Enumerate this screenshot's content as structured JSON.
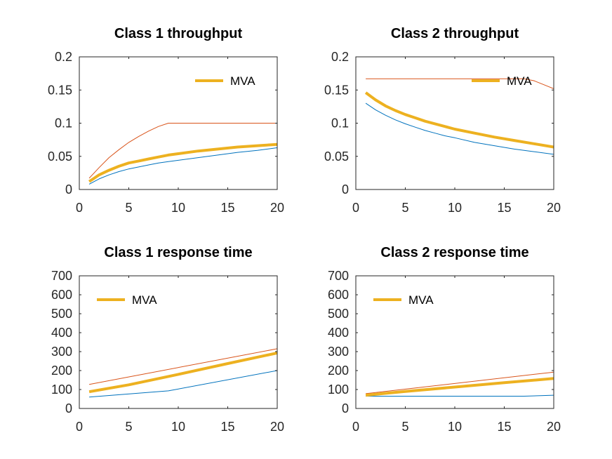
{
  "figure": {
    "background": "#ffffff"
  },
  "colors": {
    "lower_bound": "#0072bd",
    "upper_bound": "#d95319",
    "mva": "#edb120",
    "axis": "#262626"
  },
  "chart_data": [
    {
      "type": "line",
      "title": "Class 1 throughput",
      "xlabel": "",
      "ylabel": "",
      "xlim": [
        0,
        20
      ],
      "ylim": [
        0,
        0.2
      ],
      "xticks": [
        0,
        5,
        10,
        15,
        20
      ],
      "xtick_labels": [
        "0",
        "5",
        "10",
        "15",
        "20"
      ],
      "yticks": [
        0,
        0.05,
        0.1,
        0.15,
        0.2
      ],
      "ytick_labels": [
        "0",
        "0.05",
        "0.1",
        "0.15",
        "0.2"
      ],
      "legend": {
        "entries": [
          "MVA"
        ],
        "position": "top-right"
      },
      "series": [
        {
          "name": "lower",
          "color_key": "lower_bound",
          "width": 1,
          "x": [
            1,
            2,
            3,
            4,
            5,
            6,
            7,
            8,
            9,
            10,
            12,
            14,
            16,
            18,
            20
          ],
          "y": [
            0.008,
            0.016,
            0.022,
            0.027,
            0.031,
            0.034,
            0.037,
            0.04,
            0.042,
            0.044,
            0.048,
            0.052,
            0.056,
            0.059,
            0.063
          ]
        },
        {
          "name": "upper",
          "color_key": "upper_bound",
          "width": 1,
          "x": [
            1,
            2,
            3,
            4,
            5,
            6,
            7,
            8,
            9,
            10,
            15,
            20
          ],
          "y": [
            0.017,
            0.033,
            0.048,
            0.06,
            0.071,
            0.08,
            0.088,
            0.095,
            0.1,
            0.1,
            0.1,
            0.1
          ]
        },
        {
          "name": "MVA",
          "color_key": "mva",
          "width": 4,
          "x": [
            1,
            2,
            3,
            4,
            5,
            6,
            7,
            8,
            9,
            10,
            12,
            14,
            16,
            18,
            20
          ],
          "y": [
            0.012,
            0.022,
            0.029,
            0.035,
            0.04,
            0.043,
            0.046,
            0.049,
            0.052,
            0.054,
            0.058,
            0.061,
            0.064,
            0.066,
            0.068
          ]
        }
      ]
    },
    {
      "type": "line",
      "title": "Class 2 throughput",
      "xlabel": "",
      "ylabel": "",
      "xlim": [
        0,
        20
      ],
      "ylim": [
        0,
        0.2
      ],
      "xticks": [
        0,
        5,
        10,
        15,
        20
      ],
      "xtick_labels": [
        "0",
        "5",
        "10",
        "15",
        "20"
      ],
      "yticks": [
        0,
        0.05,
        0.1,
        0.15,
        0.2
      ],
      "ytick_labels": [
        "0",
        "0.05",
        "0.1",
        "0.15",
        "0.2"
      ],
      "legend": {
        "entries": [
          "MVA"
        ],
        "position": "top-right"
      },
      "series": [
        {
          "name": "lower",
          "color_key": "lower_bound",
          "width": 1,
          "x": [
            1,
            2,
            3,
            4,
            5,
            6,
            7,
            8,
            9,
            10,
            12,
            14,
            16,
            18,
            20
          ],
          "y": [
            0.13,
            0.12,
            0.112,
            0.105,
            0.099,
            0.094,
            0.089,
            0.085,
            0.081,
            0.078,
            0.071,
            0.066,
            0.061,
            0.057,
            0.053
          ]
        },
        {
          "name": "upper",
          "color_key": "upper_bound",
          "width": 1,
          "x": [
            1,
            5,
            10,
            12,
            14,
            16,
            17,
            18,
            19,
            20
          ],
          "y": [
            0.167,
            0.167,
            0.167,
            0.167,
            0.167,
            0.167,
            0.167,
            0.164,
            0.158,
            0.152
          ]
        },
        {
          "name": "MVA",
          "color_key": "mva",
          "width": 4,
          "x": [
            1,
            2,
            3,
            4,
            5,
            6,
            7,
            8,
            9,
            10,
            12,
            14,
            16,
            18,
            20
          ],
          "y": [
            0.146,
            0.135,
            0.126,
            0.119,
            0.113,
            0.108,
            0.103,
            0.099,
            0.095,
            0.091,
            0.085,
            0.079,
            0.074,
            0.069,
            0.064
          ]
        }
      ]
    },
    {
      "type": "line",
      "title": "Class 1 response time",
      "xlabel": "",
      "ylabel": "",
      "xlim": [
        0,
        20
      ],
      "ylim": [
        0,
        700
      ],
      "xticks": [
        0,
        5,
        10,
        15,
        20
      ],
      "xtick_labels": [
        "0",
        "5",
        "10",
        "15",
        "20"
      ],
      "yticks": [
        0,
        100,
        200,
        300,
        400,
        500,
        600,
        700
      ],
      "ytick_labels": [
        "0",
        "100",
        "200",
        "300",
        "400",
        "500",
        "600",
        "700"
      ],
      "legend": {
        "entries": [
          "MVA"
        ],
        "position": "top-left"
      },
      "series": [
        {
          "name": "lower",
          "color_key": "lower_bound",
          "width": 1,
          "x": [
            1,
            9,
            20
          ],
          "y": [
            60,
            93,
            200
          ]
        },
        {
          "name": "upper",
          "color_key": "upper_bound",
          "width": 1,
          "x": [
            1,
            20
          ],
          "y": [
            127,
            315
          ]
        },
        {
          "name": "MVA",
          "color_key": "mva",
          "width": 4,
          "x": [
            1,
            5,
            10,
            15,
            20
          ],
          "y": [
            88,
            125,
            180,
            237,
            293
          ]
        }
      ]
    },
    {
      "type": "line",
      "title": "Class 2 response time",
      "xlabel": "",
      "ylabel": "",
      "xlim": [
        0,
        20
      ],
      "ylim": [
        0,
        700
      ],
      "xticks": [
        0,
        5,
        10,
        15,
        20
      ],
      "xtick_labels": [
        "0",
        "5",
        "10",
        "15",
        "20"
      ],
      "yticks": [
        0,
        100,
        200,
        300,
        400,
        500,
        600,
        700
      ],
      "ytick_labels": [
        "0",
        "100",
        "200",
        "300",
        "400",
        "500",
        "600",
        "700"
      ],
      "legend": {
        "entries": [
          "MVA"
        ],
        "position": "top-left"
      },
      "series": [
        {
          "name": "lower",
          "color_key": "lower_bound",
          "width": 1,
          "x": [
            1,
            17,
            20
          ],
          "y": [
            65,
            65,
            70
          ]
        },
        {
          "name": "upper",
          "color_key": "upper_bound",
          "width": 1,
          "x": [
            1,
            20
          ],
          "y": [
            78,
            192
          ]
        },
        {
          "name": "MVA",
          "color_key": "mva",
          "width": 4,
          "x": [
            1,
            5,
            10,
            15,
            20
          ],
          "y": [
            70,
            90,
            113,
            136,
            158
          ]
        }
      ]
    }
  ]
}
